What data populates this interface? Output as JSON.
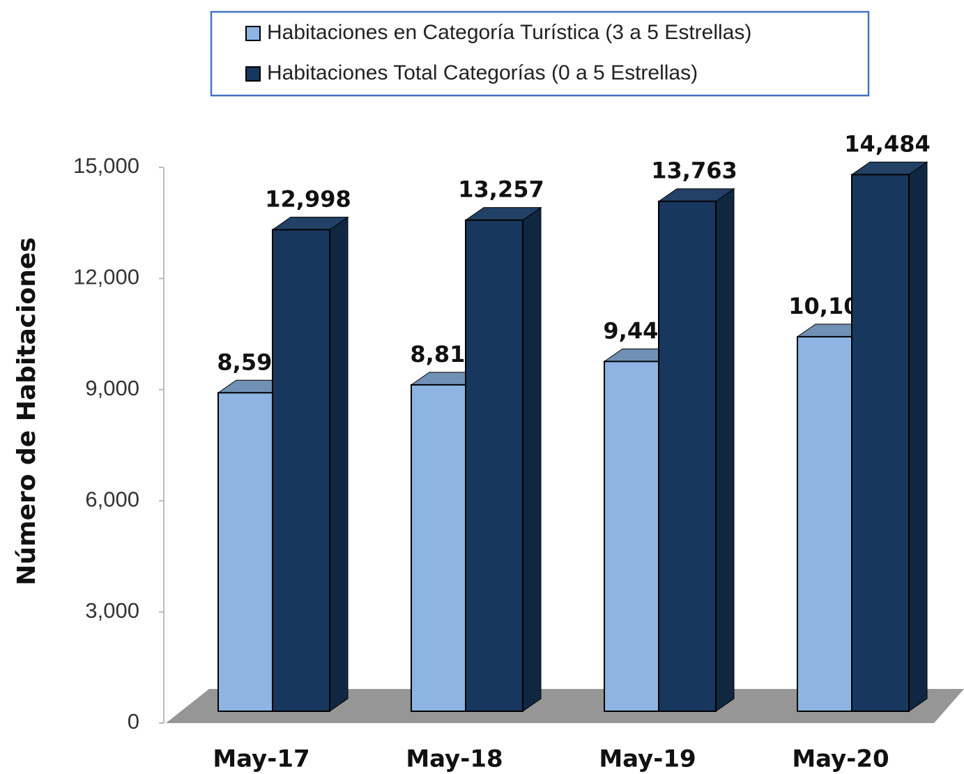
{
  "chart_data": {
    "type": "bar3d",
    "y_label": "Número de Habitaciones",
    "categories": [
      "May-17",
      "May-18",
      "May-19",
      "May-20"
    ],
    "series": [
      {
        "name": "Habitaciones en Categoría Turística (3 a 5 Estrellas)",
        "color": "#8db4e2",
        "values": [
          8596,
          8810,
          9441,
          10109
        ],
        "value_labels": [
          "8,596",
          "8,810",
          "9,441",
          "10,109"
        ]
      },
      {
        "name": "Habitaciones Total Categorías (0 a 5 Estrellas)",
        "color": "#17375e",
        "values": [
          12998,
          13257,
          13763,
          14484
        ],
        "value_labels": [
          "12,998",
          "13,257",
          "13,763",
          "14,484"
        ]
      }
    ],
    "ylim": [
      0,
      15000
    ],
    "yticks": [
      0,
      {
        "value": 3000,
        "label": "3,000"
      },
      {
        "value": 6000,
        "label": "6,000"
      },
      {
        "value": 9000,
        "label": "9,000"
      },
      {
        "value": 12000,
        "label": "12,000"
      },
      {
        "value": 15000,
        "label": "15,000"
      }
    ],
    "legend": "top"
  }
}
